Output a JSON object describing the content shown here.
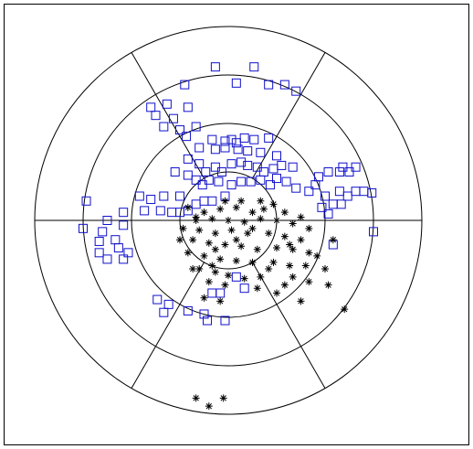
{
  "chart_data": {
    "type": "scatter",
    "coordinate_system": "polar",
    "rings": 4,
    "spokes": 6,
    "grid": true,
    "legend": "none",
    "title": "",
    "colors": {
      "squares": "#1010cc",
      "asterisks": "#000000",
      "frame": "#000000",
      "grid": "#000000"
    },
    "series": [
      {
        "marker": "square",
        "points": [
          [
            -0.08,
            0.95
          ],
          [
            0.16,
            0.95
          ],
          [
            0.05,
            0.85
          ],
          [
            -0.27,
            0.84
          ],
          [
            0.25,
            0.84
          ],
          [
            0.35,
            0.84
          ],
          [
            0.42,
            0.8
          ],
          [
            -0.48,
            0.7
          ],
          [
            -0.38,
            0.72
          ],
          [
            -0.25,
            0.7
          ],
          [
            -0.45,
            0.65
          ],
          [
            -0.34,
            0.63
          ],
          [
            -0.4,
            0.58
          ],
          [
            -0.3,
            0.56
          ],
          [
            -0.2,
            0.58
          ],
          [
            -0.26,
            0.52
          ],
          [
            -0.1,
            0.5
          ],
          [
            -0.02,
            0.49
          ],
          [
            0.02,
            0.5
          ],
          [
            0.1,
            0.51
          ],
          [
            0.16,
            0.5
          ],
          [
            0.25,
            0.51
          ],
          [
            -0.18,
            0.45
          ],
          [
            -0.08,
            0.44
          ],
          [
            -0.02,
            0.45
          ],
          [
            0.06,
            0.44
          ],
          [
            0.12,
            0.43
          ],
          [
            0.2,
            0.42
          ],
          [
            0.3,
            0.4
          ],
          [
            0.05,
            0.48
          ],
          [
            -0.25,
            0.38
          ],
          [
            -0.18,
            0.35
          ],
          [
            -0.14,
            0.3
          ],
          [
            -0.08,
            0.33
          ],
          [
            -0.04,
            0.3
          ],
          [
            0.02,
            0.35
          ],
          [
            0.08,
            0.36
          ],
          [
            0.12,
            0.34
          ],
          [
            0.18,
            0.33
          ],
          [
            0.22,
            0.3
          ],
          [
            0.28,
            0.32
          ],
          [
            0.33,
            0.34
          ],
          [
            0.4,
            0.33
          ],
          [
            -0.33,
            0.3
          ],
          [
            -0.25,
            0.28
          ],
          [
            -0.2,
            0.25
          ],
          [
            -0.16,
            0.22
          ],
          [
            -0.12,
            0.25
          ],
          [
            -0.06,
            0.24
          ],
          [
            0.02,
            0.22
          ],
          [
            0.08,
            0.24
          ],
          [
            0.14,
            0.24
          ],
          [
            0.2,
            0.25
          ],
          [
            0.26,
            0.22
          ],
          [
            0.3,
            0.26
          ],
          [
            0.36,
            0.24
          ],
          [
            0.42,
            0.2
          ],
          [
            0.5,
            0.18
          ],
          [
            0.54,
            0.22
          ],
          [
            0.6,
            0.15
          ],
          [
            0.56,
            0.27
          ],
          [
            0.62,
            0.3
          ],
          [
            0.69,
            0.3
          ],
          [
            0.75,
            0.3
          ],
          [
            0.71,
            0.33
          ],
          [
            0.79,
            0.33
          ],
          [
            0.69,
            0.18
          ],
          [
            0.74,
            0.15
          ],
          [
            0.79,
            0.18
          ],
          [
            0.84,
            0.18
          ],
          [
            0.89,
            0.17
          ],
          [
            0.65,
            0.1
          ],
          [
            0.7,
            0.1
          ],
          [
            0.58,
            0.08
          ],
          [
            0.62,
            0.04
          ],
          [
            -0.4,
            0.15
          ],
          [
            -0.3,
            0.15
          ],
          [
            -0.55,
            0.15
          ],
          [
            -0.48,
            0.13
          ],
          [
            -0.52,
            0.06
          ],
          [
            -0.42,
            0.06
          ],
          [
            -0.35,
            0.05
          ],
          [
            -0.3,
            0.05
          ],
          [
            -0.25,
            0.06
          ],
          [
            -0.2,
            0.1
          ],
          [
            -0.15,
            0.12
          ],
          [
            -0.1,
            0.12
          ],
          [
            -0.02,
            0.15
          ],
          [
            -0.65,
            0.05
          ],
          [
            -0.75,
            0.0
          ],
          [
            -0.65,
            -0.03
          ],
          [
            -0.78,
            -0.07
          ],
          [
            -0.7,
            -0.12
          ],
          [
            -0.8,
            -0.13
          ],
          [
            -0.68,
            -0.17
          ],
          [
            -0.62,
            -0.2
          ],
          [
            -0.8,
            -0.2
          ],
          [
            -0.75,
            -0.24
          ],
          [
            -0.65,
            -0.24
          ],
          [
            -0.88,
            0.12
          ],
          [
            -0.9,
            -0.05
          ],
          [
            0.05,
            -0.35
          ],
          [
            -0.1,
            -0.45
          ],
          [
            -0.05,
            -0.45
          ],
          [
            0.1,
            -0.42
          ],
          [
            -0.44,
            -0.49
          ],
          [
            -0.37,
            -0.52
          ],
          [
            -0.4,
            -0.57
          ],
          [
            -0.25,
            -0.56
          ],
          [
            -0.15,
            -0.58
          ],
          [
            -0.13,
            -0.62
          ],
          [
            -0.02,
            -0.62
          ],
          [
            0.9,
            -0.07
          ],
          [
            0.65,
            -0.15
          ]
        ]
      },
      {
        "marker": "asterisk",
        "points": [
          [
            -0.25,
            0.08
          ],
          [
            -0.15,
            0.05
          ],
          [
            -0.05,
            0.07
          ],
          [
            0.05,
            0.08
          ],
          [
            0.15,
            0.05
          ],
          [
            0.22,
            0.07
          ],
          [
            0.35,
            0.05
          ],
          [
            0.45,
            0.02
          ],
          [
            -0.2,
            0.02
          ],
          [
            -0.1,
            0.01
          ],
          [
            0.0,
            0.0
          ],
          [
            0.1,
            -0.01
          ],
          [
            0.2,
            0.01
          ],
          [
            0.3,
            0.0
          ],
          [
            0.4,
            -0.02
          ],
          [
            0.5,
            -0.05
          ],
          [
            -0.28,
            -0.05
          ],
          [
            -0.18,
            -0.06
          ],
          [
            -0.08,
            -0.08
          ],
          [
            0.02,
            -0.06
          ],
          [
            0.12,
            -0.08
          ],
          [
            0.25,
            -0.08
          ],
          [
            0.35,
            -0.1
          ],
          [
            0.45,
            -0.12
          ],
          [
            -0.22,
            -0.12
          ],
          [
            -0.12,
            -0.14
          ],
          [
            -0.02,
            -0.15
          ],
          [
            0.08,
            -0.16
          ],
          [
            0.18,
            -0.18
          ],
          [
            0.3,
            -0.17
          ],
          [
            0.4,
            -0.18
          ],
          [
            0.5,
            -0.2
          ],
          [
            -0.25,
            -0.2
          ],
          [
            -0.15,
            -0.22
          ],
          [
            -0.05,
            -0.24
          ],
          [
            0.05,
            -0.25
          ],
          [
            0.15,
            -0.26
          ],
          [
            0.28,
            -0.26
          ],
          [
            0.38,
            -0.28
          ],
          [
            0.48,
            -0.28
          ],
          [
            0.6,
            -0.3
          ],
          [
            -0.18,
            -0.3
          ],
          [
            -0.08,
            -0.32
          ],
          [
            0.0,
            -0.34
          ],
          [
            0.1,
            -0.36
          ],
          [
            0.2,
            -0.35
          ],
          [
            -0.12,
            -0.38
          ],
          [
            -0.02,
            -0.4
          ],
          [
            0.35,
            -0.4
          ],
          [
            0.62,
            -0.4
          ],
          [
            -0.15,
            -0.48
          ],
          [
            -0.05,
            -0.5
          ],
          [
            0.45,
            -0.5
          ],
          [
            -0.2,
            0.0
          ],
          [
            -0.02,
            0.12
          ],
          [
            0.08,
            0.12
          ],
          [
            0.2,
            0.12
          ],
          [
            0.28,
            0.1
          ],
          [
            0.38,
            -0.15
          ],
          [
            0.15,
            -0.05
          ],
          [
            -0.1,
            -0.28
          ],
          [
            0.25,
            -0.3
          ],
          [
            0.55,
            -0.22
          ],
          [
            0.65,
            -0.12
          ],
          [
            -0.3,
            -0.12
          ],
          [
            0.3,
            -0.45
          ],
          [
            0.4,
            -0.35
          ],
          [
            -0.08,
            -0.18
          ],
          [
            0.05,
            -0.12
          ],
          [
            0.18,
            -0.42
          ],
          [
            0.72,
            -0.55
          ],
          [
            -0.22,
            -0.3
          ],
          [
            0.5,
            -0.38
          ],
          [
            -0.2,
            -1.1
          ],
          [
            -0.12,
            -1.15
          ],
          [
            -0.03,
            -1.1
          ]
        ]
      }
    ]
  }
}
